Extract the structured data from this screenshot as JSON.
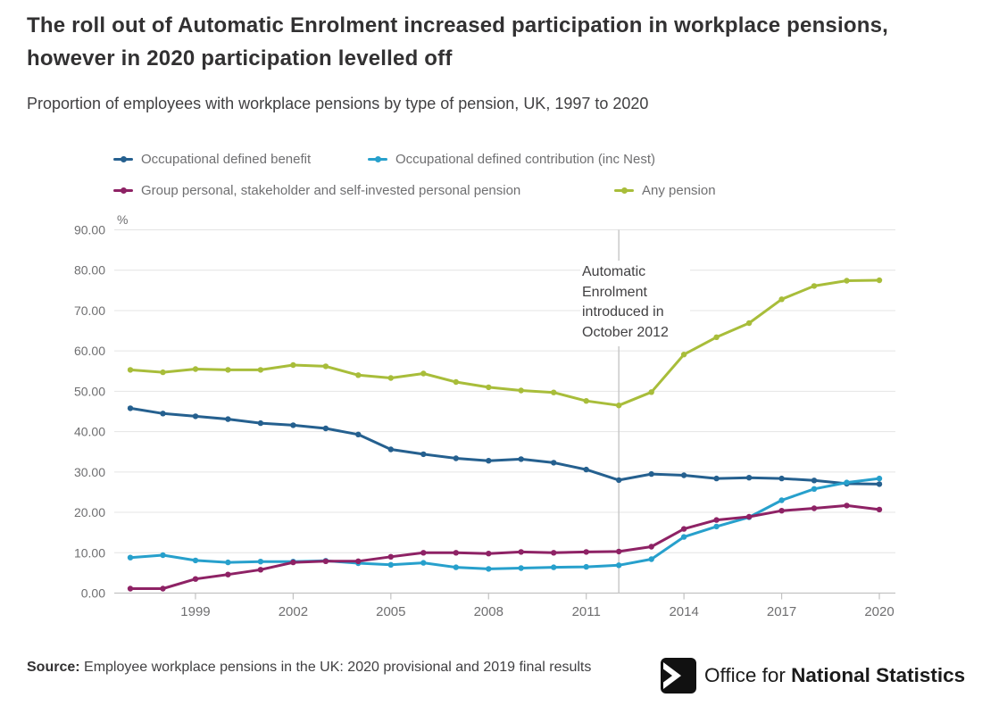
{
  "header": {
    "title": "The roll out of Automatic Enrolment increased participation in workplace pensions, however in 2020 participation levelled off",
    "subtitle": "Proportion of employees with workplace pensions by type of pension, UK, 1997 to 2020"
  },
  "chart_data": {
    "type": "line",
    "title": "Proportion of employees with workplace pensions by type of pension, UK, 1997 to 2020",
    "unit": "%",
    "grid": true,
    "legend_position": "top",
    "ylim": [
      0,
      90
    ],
    "yticks": [
      0,
      10,
      20,
      30,
      40,
      50,
      60,
      70,
      80,
      90
    ],
    "ytick_labels": [
      "0.00",
      "10.00",
      "20.00",
      "30.00",
      "40.00",
      "50.00",
      "60.00",
      "70.00",
      "80.00",
      "90.00"
    ],
    "xticks": [
      1999,
      2002,
      2005,
      2008,
      2011,
      2014,
      2017,
      2020
    ],
    "x": [
      1997,
      1998,
      1999,
      2000,
      2001,
      2002,
      2003,
      2004,
      2005,
      2006,
      2007,
      2008,
      2009,
      2010,
      2011,
      2012,
      2013,
      2014,
      2015,
      2016,
      2017,
      2018,
      2019,
      2020
    ],
    "series": [
      {
        "name": "Occupational defined benefit",
        "slug": "occupational-defined-benefit",
        "color": "#25608f",
        "values": [
          45.8,
          44.5,
          43.8,
          43.1,
          42.1,
          41.6,
          40.8,
          39.3,
          35.6,
          34.4,
          33.4,
          32.8,
          33.2,
          32.3,
          30.6,
          28.0,
          29.5,
          29.2,
          28.4,
          28.6,
          28.4,
          27.9,
          27.1,
          27.0
        ]
      },
      {
        "name": "Occupational defined contribution (inc Nest)",
        "slug": "occupational-defined-contribution",
        "color": "#27a0cc",
        "values": [
          8.8,
          9.4,
          8.1,
          7.6,
          7.8,
          7.8,
          8.0,
          7.4,
          7.0,
          7.5,
          6.4,
          6.0,
          6.2,
          6.4,
          6.5,
          6.9,
          8.4,
          13.9,
          16.5,
          18.8,
          23.0,
          25.8,
          27.4,
          28.4
        ]
      },
      {
        "name": "Group personal, stakeholder and self-invested personal pension",
        "slug": "group-personal-pension",
        "color": "#8e2265",
        "values": [
          1.1,
          1.1,
          3.5,
          4.6,
          5.8,
          7.6,
          7.9,
          7.9,
          9.0,
          10.0,
          10.0,
          9.8,
          10.2,
          10.0,
          10.2,
          10.3,
          11.5,
          15.9,
          18.1,
          18.9,
          20.4,
          21.0,
          21.7,
          20.7
        ]
      },
      {
        "name": "Any pension",
        "slug": "any-pension",
        "color": "#a8bd3a",
        "values": [
          55.3,
          54.7,
          55.5,
          55.3,
          55.3,
          56.5,
          56.2,
          54.0,
          53.3,
          54.4,
          52.3,
          51.0,
          50.2,
          49.7,
          47.6,
          46.5,
          49.8,
          59.1,
          63.4,
          66.9,
          72.8,
          76.1,
          77.4,
          77.5
        ]
      }
    ],
    "annotation": {
      "text": "Automatic Enrolment introduced in October 2012",
      "x": 2012
    }
  },
  "footer": {
    "source_label": "Source:",
    "source_text": " Employee workplace pensions in the UK: 2020 provisional and 2019 final results",
    "logo_regular": "Office for ",
    "logo_bold": "National Statistics"
  },
  "colors": {
    "grid": "#e4e4e4",
    "axis": "#c2c2c2",
    "reference_line": "#c9c9c9",
    "axis_text": "#6f6f71"
  }
}
